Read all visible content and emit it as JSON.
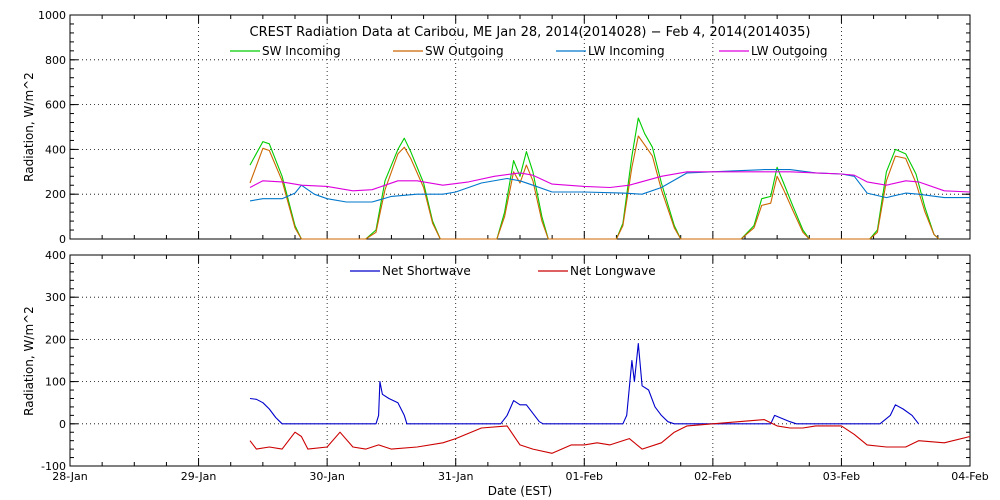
{
  "chart_data": [
    {
      "type": "line",
      "title": "CREST Radiation Data at Caribou, ME   Jan 28, 2014(2014028) − Feb  4, 2014(2014035)",
      "ylabel": "Radiation,  W/m^2",
      "ylim": [
        0,
        1000
      ],
      "yticks": [
        0,
        200,
        400,
        600,
        800,
        1000
      ],
      "xlim_days": [
        0,
        7
      ],
      "grid": true,
      "legend": "top, horizontal",
      "series": [
        {
          "name": "SW Incoming",
          "color": "#00cc00",
          "points": [
            [
              1.4,
              330
            ],
            [
              1.5,
              435
            ],
            [
              1.55,
              425
            ],
            [
              1.65,
              280
            ],
            [
              1.75,
              60
            ],
            [
              1.8,
              0
            ],
            [
              2.3,
              0
            ],
            [
              2.38,
              40
            ],
            [
              2.45,
              260
            ],
            [
              2.55,
              400
            ],
            [
              2.6,
              450
            ],
            [
              2.65,
              390
            ],
            [
              2.75,
              250
            ],
            [
              2.82,
              80
            ],
            [
              2.88,
              0
            ],
            [
              3.32,
              0
            ],
            [
              3.38,
              120
            ],
            [
              3.45,
              350
            ],
            [
              3.5,
              280
            ],
            [
              3.55,
              390
            ],
            [
              3.6,
              300
            ],
            [
              3.67,
              100
            ],
            [
              3.72,
              0
            ],
            [
              4.25,
              0
            ],
            [
              4.3,
              70
            ],
            [
              4.37,
              370
            ],
            [
              4.42,
              540
            ],
            [
              4.47,
              470
            ],
            [
              4.53,
              410
            ],
            [
              4.6,
              250
            ],
            [
              4.7,
              60
            ],
            [
              4.75,
              0
            ],
            [
              5.22,
              0
            ],
            [
              5.32,
              60
            ],
            [
              5.38,
              180
            ],
            [
              5.45,
              190
            ],
            [
              5.5,
              320
            ],
            [
              5.55,
              250
            ],
            [
              5.62,
              150
            ],
            [
              5.7,
              40
            ],
            [
              5.75,
              0
            ],
            [
              6.22,
              0
            ],
            [
              6.28,
              40
            ],
            [
              6.35,
              300
            ],
            [
              6.42,
              400
            ],
            [
              6.5,
              380
            ],
            [
              6.58,
              290
            ],
            [
              6.65,
              140
            ],
            [
              6.72,
              20
            ],
            [
              6.76,
              0
            ]
          ]
        },
        {
          "name": "SW Outgoing",
          "color": "#cc6600",
          "points": [
            [
              1.4,
              250
            ],
            [
              1.5,
              405
            ],
            [
              1.55,
              395
            ],
            [
              1.65,
              260
            ],
            [
              1.75,
              50
            ],
            [
              1.8,
              0
            ],
            [
              2.3,
              0
            ],
            [
              2.38,
              30
            ],
            [
              2.45,
              220
            ],
            [
              2.55,
              380
            ],
            [
              2.6,
              410
            ],
            [
              2.65,
              360
            ],
            [
              2.75,
              230
            ],
            [
              2.82,
              70
            ],
            [
              2.88,
              0
            ],
            [
              3.32,
              0
            ],
            [
              3.38,
              100
            ],
            [
              3.45,
              300
            ],
            [
              3.5,
              250
            ],
            [
              3.55,
              330
            ],
            [
              3.6,
              260
            ],
            [
              3.67,
              80
            ],
            [
              3.72,
              0
            ],
            [
              4.25,
              0
            ],
            [
              4.3,
              60
            ],
            [
              4.37,
              320
            ],
            [
              4.42,
              460
            ],
            [
              4.47,
              420
            ],
            [
              4.53,
              370
            ],
            [
              4.6,
              220
            ],
            [
              4.7,
              50
            ],
            [
              4.75,
              0
            ],
            [
              5.22,
              0
            ],
            [
              5.32,
              50
            ],
            [
              5.38,
              150
            ],
            [
              5.45,
              160
            ],
            [
              5.5,
              280
            ],
            [
              5.55,
              220
            ],
            [
              5.62,
              130
            ],
            [
              5.7,
              30
            ],
            [
              5.75,
              0
            ],
            [
              6.22,
              0
            ],
            [
              6.28,
              30
            ],
            [
              6.35,
              260
            ],
            [
              6.42,
              370
            ],
            [
              6.5,
              360
            ],
            [
              6.58,
              250
            ],
            [
              6.65,
              120
            ],
            [
              6.72,
              20
            ],
            [
              6.76,
              0
            ]
          ]
        },
        {
          "name": "LW Incoming",
          "color": "#0077cc",
          "points": [
            [
              1.4,
              170
            ],
            [
              1.5,
              180
            ],
            [
              1.65,
              180
            ],
            [
              1.75,
              205
            ],
            [
              1.8,
              240
            ],
            [
              1.9,
              200
            ],
            [
              2.0,
              180
            ],
            [
              2.15,
              165
            ],
            [
              2.35,
              165
            ],
            [
              2.5,
              190
            ],
            [
              2.7,
              200
            ],
            [
              2.9,
              200
            ],
            [
              3.0,
              210
            ],
            [
              3.2,
              250
            ],
            [
              3.4,
              270
            ],
            [
              3.5,
              260
            ],
            [
              3.6,
              240
            ],
            [
              3.75,
              210
            ],
            [
              4.0,
              210
            ],
            [
              4.3,
              205
            ],
            [
              4.45,
              200
            ],
            [
              4.6,
              230
            ],
            [
              4.8,
              295
            ],
            [
              5.0,
              300
            ],
            [
              5.2,
              305
            ],
            [
              5.4,
              310
            ],
            [
              5.6,
              310
            ],
            [
              5.8,
              295
            ],
            [
              6.0,
              290
            ],
            [
              6.1,
              280
            ],
            [
              6.2,
              205
            ],
            [
              6.35,
              185
            ],
            [
              6.5,
              205
            ],
            [
              6.6,
              200
            ],
            [
              6.8,
              185
            ],
            [
              7.0,
              185
            ]
          ]
        },
        {
          "name": "LW Outgoing",
          "color": "#dd00dd",
          "points": [
            [
              1.4,
              230
            ],
            [
              1.5,
              260
            ],
            [
              1.65,
              255
            ],
            [
              1.8,
              240
            ],
            [
              2.0,
              235
            ],
            [
              2.2,
              215
            ],
            [
              2.35,
              220
            ],
            [
              2.55,
              260
            ],
            [
              2.7,
              260
            ],
            [
              2.9,
              240
            ],
            [
              3.1,
              255
            ],
            [
              3.3,
              280
            ],
            [
              3.5,
              295
            ],
            [
              3.6,
              285
            ],
            [
              3.75,
              245
            ],
            [
              4.0,
              235
            ],
            [
              4.2,
              230
            ],
            [
              4.35,
              240
            ],
            [
              4.6,
              280
            ],
            [
              4.8,
              300
            ],
            [
              5.0,
              300
            ],
            [
              5.2,
              300
            ],
            [
              5.4,
              300
            ],
            [
              5.6,
              300
            ],
            [
              5.8,
              295
            ],
            [
              6.0,
              290
            ],
            [
              6.1,
              285
            ],
            [
              6.2,
              255
            ],
            [
              6.35,
              240
            ],
            [
              6.5,
              260
            ],
            [
              6.6,
              255
            ],
            [
              6.8,
              215
            ],
            [
              7.0,
              210
            ]
          ]
        }
      ]
    },
    {
      "type": "line",
      "ylabel": "Radiation,  W/m^2",
      "xlabel": "Date (EST)",
      "ylim": [
        -100,
        400
      ],
      "yticks": [
        -100,
        0,
        100,
        200,
        300,
        400
      ],
      "xlim_days": [
        0,
        7
      ],
      "x_tick_labels": [
        "28-Jan",
        "29-Jan",
        "30-Jan",
        "31-Jan",
        "01-Feb",
        "02-Feb",
        "03-Feb",
        "04-Feb"
      ],
      "grid": true,
      "legend": "top, horizontal",
      "series": [
        {
          "name": "Net Shortwave",
          "color": "#0000cc",
          "points": [
            [
              1.4,
              60
            ],
            [
              1.45,
              58
            ],
            [
              1.5,
              50
            ],
            [
              1.55,
              35
            ],
            [
              1.6,
              15
            ],
            [
              1.65,
              0
            ],
            [
              2.38,
              0
            ],
            [
              2.4,
              20
            ],
            [
              2.41,
              100
            ],
            [
              2.43,
              70
            ],
            [
              2.48,
              60
            ],
            [
              2.55,
              50
            ],
            [
              2.6,
              20
            ],
            [
              2.62,
              0
            ],
            [
              3.35,
              0
            ],
            [
              3.4,
              20
            ],
            [
              3.45,
              55
            ],
            [
              3.5,
              45
            ],
            [
              3.55,
              45
            ],
            [
              3.6,
              25
            ],
            [
              3.65,
              5
            ],
            [
              3.68,
              0
            ],
            [
              4.3,
              0
            ],
            [
              4.33,
              20
            ],
            [
              4.37,
              150
            ],
            [
              4.39,
              100
            ],
            [
              4.42,
              190
            ],
            [
              4.45,
              90
            ],
            [
              4.5,
              80
            ],
            [
              4.55,
              40
            ],
            [
              4.6,
              20
            ],
            [
              4.65,
              5
            ],
            [
              4.7,
              0
            ],
            [
              5.45,
              0
            ],
            [
              5.48,
              20
            ],
            [
              5.52,
              15
            ],
            [
              5.6,
              5
            ],
            [
              5.65,
              0
            ],
            [
              6.3,
              0
            ],
            [
              6.38,
              20
            ],
            [
              6.42,
              45
            ],
            [
              6.48,
              35
            ],
            [
              6.55,
              20
            ],
            [
              6.6,
              0
            ]
          ]
        },
        {
          "name": "Net Longwave",
          "color": "#cc0000",
          "points": [
            [
              1.4,
              -40
            ],
            [
              1.45,
              -60
            ],
            [
              1.55,
              -55
            ],
            [
              1.65,
              -60
            ],
            [
              1.75,
              -20
            ],
            [
              1.8,
              -30
            ],
            [
              1.85,
              -60
            ],
            [
              2.0,
              -55
            ],
            [
              2.1,
              -20
            ],
            [
              2.2,
              -55
            ],
            [
              2.3,
              -60
            ],
            [
              2.4,
              -50
            ],
            [
              2.5,
              -60
            ],
            [
              2.7,
              -55
            ],
            [
              2.9,
              -45
            ],
            [
              3.0,
              -35
            ],
            [
              3.2,
              -10
            ],
            [
              3.4,
              -5
            ],
            [
              3.5,
              -50
            ],
            [
              3.6,
              -60
            ],
            [
              3.75,
              -70
            ],
            [
              3.9,
              -50
            ],
            [
              4.0,
              -50
            ],
            [
              4.1,
              -45
            ],
            [
              4.2,
              -50
            ],
            [
              4.35,
              -35
            ],
            [
              4.45,
              -60
            ],
            [
              4.6,
              -45
            ],
            [
              4.7,
              -20
            ],
            [
              4.8,
              -5
            ],
            [
              5.0,
              0
            ],
            [
              5.2,
              5
            ],
            [
              5.4,
              10
            ],
            [
              5.5,
              -5
            ],
            [
              5.6,
              -10
            ],
            [
              5.7,
              -10
            ],
            [
              5.8,
              -5
            ],
            [
              6.0,
              -5
            ],
            [
              6.1,
              -25
            ],
            [
              6.2,
              -50
            ],
            [
              6.35,
              -55
            ],
            [
              6.5,
              -55
            ],
            [
              6.6,
              -40
            ],
            [
              6.8,
              -45
            ],
            [
              7.0,
              -30
            ]
          ]
        }
      ]
    }
  ]
}
